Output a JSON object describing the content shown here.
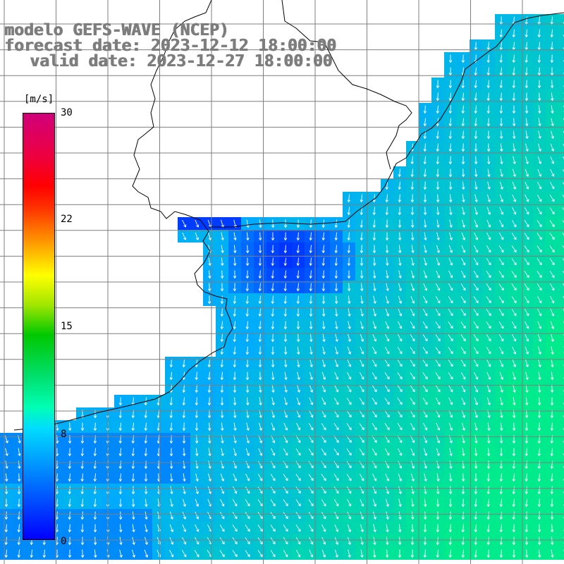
{
  "title": {
    "line1": "modelo GEFS-WAVE (NCEP)",
    "line2": "forecast date: 2023-12-12 18:00:00",
    "line3": "valid date: 2023-12-27 18:00:00"
  },
  "colorbar": {
    "unit": "[m/s]",
    "ticks": [
      "30",
      "22",
      "15",
      "8",
      "0"
    ],
    "range": [
      0,
      30
    ],
    "colors": [
      "#0000ff",
      "#0078ff",
      "#00dcff",
      "#00ffb4",
      "#00c800",
      "#ffff00",
      "#ff9600",
      "#ff0000",
      "#d0007a"
    ]
  },
  "map": {
    "variable": "wind speed and direction",
    "ocean_color_low": "#0036ff",
    "ocean_color_mid": "#00c8f0",
    "ocean_color_high": "#00e890",
    "land_color": "#ffffff",
    "grid_color": "#7f7f7f",
    "coast_color": "#000000",
    "arrow_color": "#ffffff"
  }
}
